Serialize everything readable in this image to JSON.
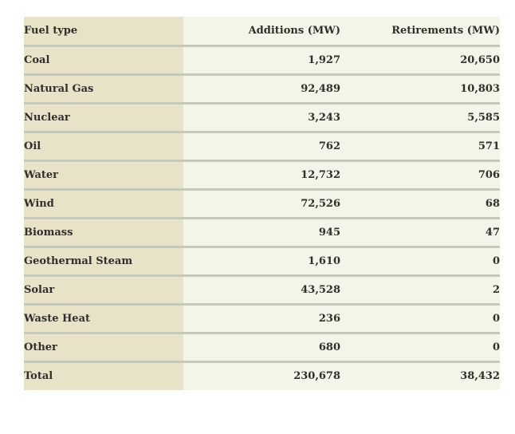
{
  "table": {
    "columns": [
      {
        "label": "Fuel type"
      },
      {
        "label": "Additions (MW)"
      },
      {
        "label": "Retirements (MW)"
      }
    ],
    "rows": [
      {
        "fuel": "Coal",
        "additions": "1,927",
        "retirements": "20,650"
      },
      {
        "fuel": "Natural Gas",
        "additions": "92,489",
        "retirements": "10,803"
      },
      {
        "fuel": "Nuclear",
        "additions": "3,243",
        "retirements": "5,585"
      },
      {
        "fuel": "Oil",
        "additions": "762",
        "retirements": "571"
      },
      {
        "fuel": "Water",
        "additions": "12,732",
        "retirements": "706"
      },
      {
        "fuel": "Wind",
        "additions": "72,526",
        "retirements": "68"
      },
      {
        "fuel": "Biomass",
        "additions": "945",
        "retirements": "47"
      },
      {
        "fuel": "Geothermal Steam",
        "additions": "1,610",
        "retirements": "0"
      },
      {
        "fuel": "Solar",
        "additions": "43,528",
        "retirements": "2"
      },
      {
        "fuel": "Waste Heat",
        "additions": "236",
        "retirements": "0"
      },
      {
        "fuel": "Other",
        "additions": "680",
        "retirements": "0"
      },
      {
        "fuel": "Total",
        "additions": "230,678",
        "retirements": "38,432"
      }
    ]
  },
  "chart_data": {
    "type": "table",
    "columns": [
      "Fuel type",
      "Additions (MW)",
      "Retirements (MW)"
    ],
    "rows": [
      [
        "Coal",
        1927,
        20650
      ],
      [
        "Natural Gas",
        92489,
        10803
      ],
      [
        "Nuclear",
        3243,
        5585
      ],
      [
        "Oil",
        762,
        571
      ],
      [
        "Water",
        12732,
        706
      ],
      [
        "Wind",
        72526,
        68
      ],
      [
        "Biomass",
        945,
        47
      ],
      [
        "Geothermal Steam",
        1610,
        0
      ],
      [
        "Solar",
        43528,
        2
      ],
      [
        "Waste Heat",
        236,
        0
      ],
      [
        "Other",
        680,
        0
      ],
      [
        "Total",
        230678,
        38432
      ]
    ]
  },
  "colors": {
    "fuel_column_bg": "#e7e2c8",
    "value_column_bg": "#f2f5e7",
    "row_divider": "#c6c9b8",
    "text": "#302f2a",
    "page_bg": "#ffffff"
  }
}
